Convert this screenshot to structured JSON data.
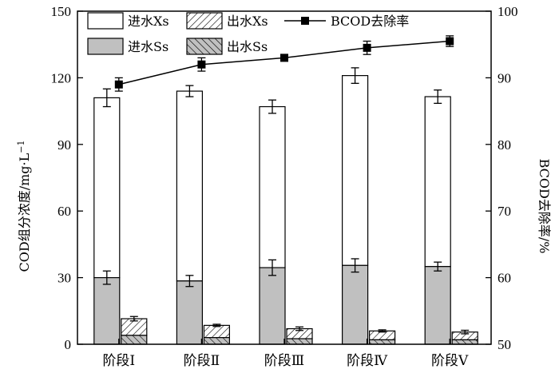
{
  "chart_data": {
    "type": "bar",
    "categories": [
      "阶段Ⅰ",
      "阶段Ⅱ",
      "阶段Ⅲ",
      "阶段Ⅳ",
      "阶段Ⅴ"
    ],
    "stacked_bars": [
      {
        "bar": "influent",
        "segments": [
          {
            "name": "进水Ss",
            "values": [
              30,
              28.5,
              34.5,
              35.5,
              35
            ],
            "errors": [
              3,
              2.5,
              3.5,
              3,
              2
            ]
          },
          {
            "name": "进水Xs",
            "values": [
              81,
              85.5,
              72.5,
              85.5,
              76.5
            ],
            "totals": [
              111,
              114,
              107,
              121,
              111.5
            ],
            "errors": [
              4,
              2.5,
              3,
              3.5,
              3
            ]
          }
        ]
      },
      {
        "bar": "effluent",
        "segments": [
          {
            "name": "出水Ss",
            "values": [
              4,
              3,
              2.5,
              2,
              2
            ]
          },
          {
            "name": "出水Xs",
            "values": [
              7.5,
              5.5,
              4.5,
              4,
              3.5
            ],
            "totals": [
              11.5,
              8.5,
              7,
              6,
              5.5
            ],
            "errors": [
              1,
              0.5,
              0.8,
              0.5,
              0.8
            ]
          }
        ]
      }
    ],
    "line_series": {
      "name": "BCOD去除率",
      "values": [
        89,
        92,
        93,
        94.5,
        95.5
      ],
      "errors": [
        1,
        1,
        0.5,
        1,
        0.8
      ]
    },
    "y_left": {
      "label": "COD组分浓度/mg·L",
      "label_sup": "−1",
      "ylim": [
        0,
        150
      ],
      "ticks": [
        0,
        30,
        60,
        90,
        120,
        150
      ]
    },
    "y_right": {
      "label": "BCOD去除率/%",
      "ylim": [
        50,
        100
      ],
      "ticks": [
        50,
        60,
        70,
        80,
        90,
        100
      ]
    },
    "legend": {
      "placement": "top-left",
      "entries": [
        "进水Xs",
        "出水Xs",
        "BCOD去除率",
        "进水Ss",
        "出水Ss"
      ]
    },
    "colors": {
      "influent_xs": "#ffffff",
      "influent_ss": "#c0c0c0",
      "effluent_ss": "#c0c0c0",
      "line": "#000000"
    }
  }
}
